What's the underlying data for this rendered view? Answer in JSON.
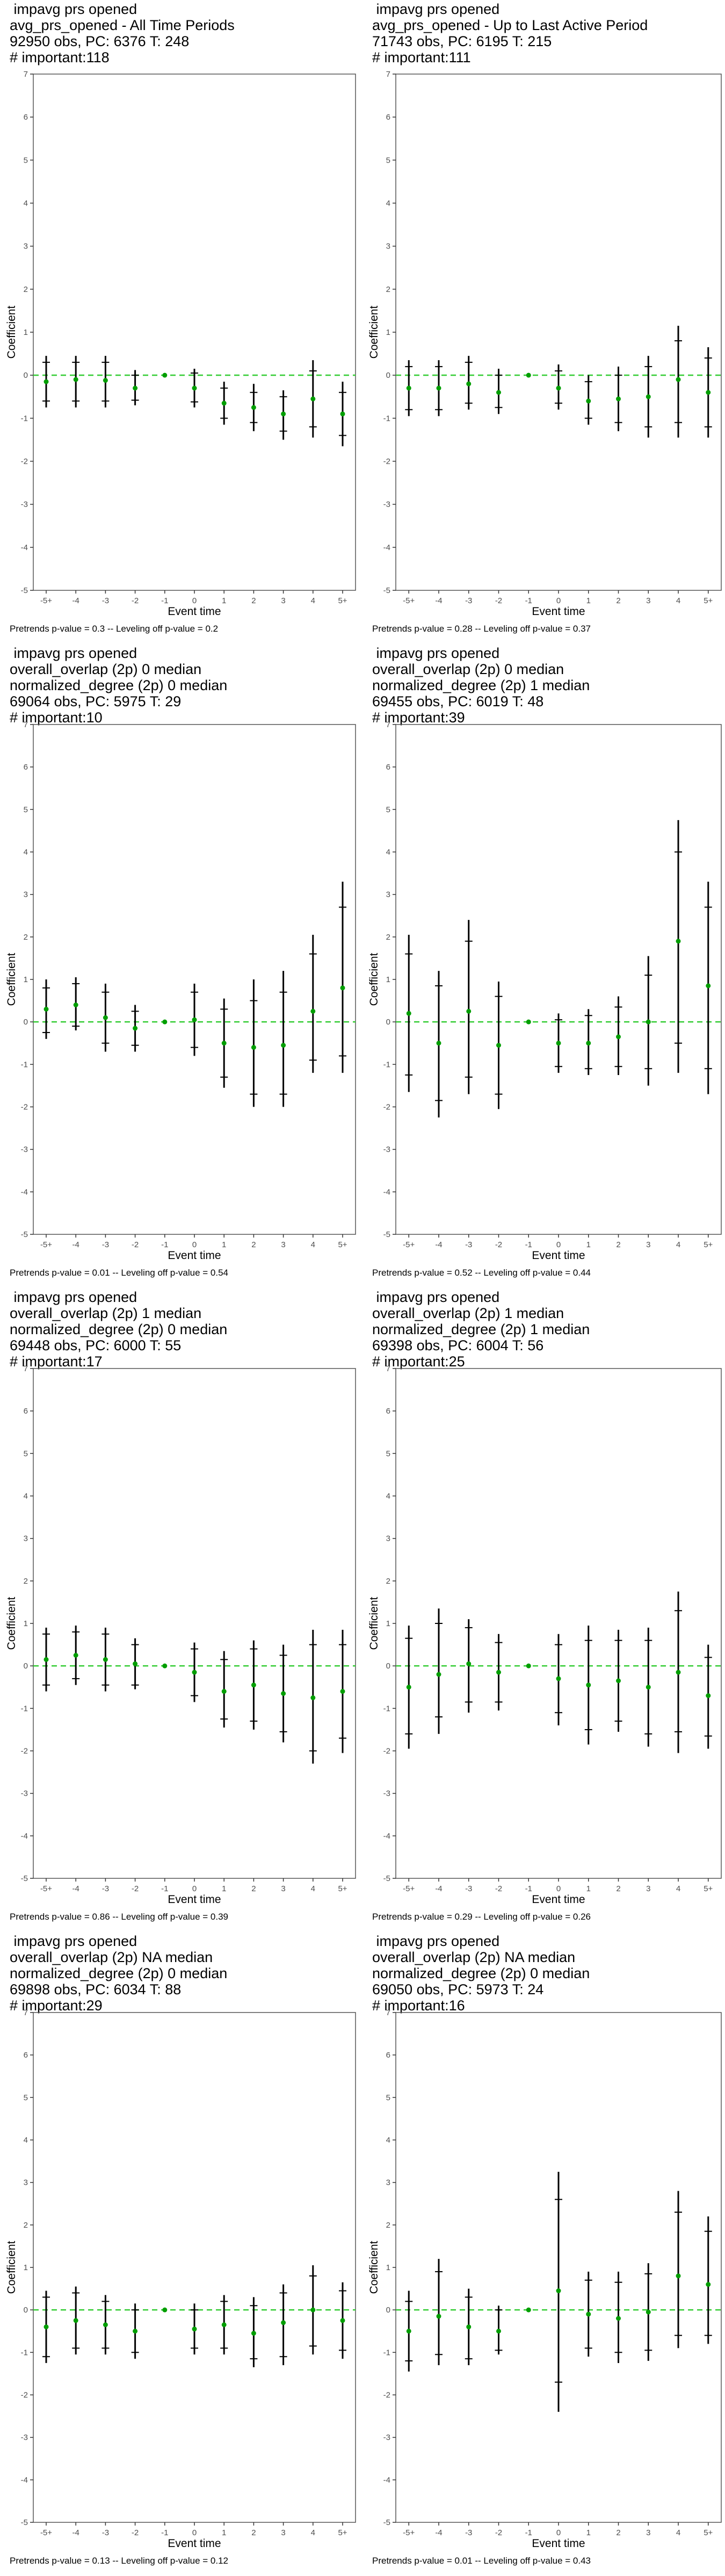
{
  "chart_data": [
    {
      "type": "errorbar",
      "title_lines": [
        " impavg prs opened",
        "avg_prs_opened - All Time Periods",
        "92950 obs, PC: 6376 T: 248",
        "# important:118"
      ],
      "caption": "Pretrends p-value = 0.3 -- Leveling off p-value = 0.2",
      "xlabel": "Event time",
      "ylabel": "Coefficient",
      "ylim": [
        -5,
        7
      ],
      "yticks": [
        -5,
        -4,
        -3,
        -2,
        -1,
        0,
        1,
        2,
        3,
        4,
        5,
        6,
        7
      ],
      "categories": [
        "-5+",
        "-4",
        "-3",
        "-2",
        "-1",
        "0",
        "1",
        "2",
        "3",
        "4",
        "5+"
      ],
      "coef": [
        -0.15,
        -0.1,
        -0.12,
        -0.3,
        0,
        -0.3,
        -0.65,
        -0.75,
        -0.9,
        -0.55,
        -0.9
      ],
      "ci_low": [
        -0.75,
        -0.75,
        -0.75,
        -0.7,
        0,
        -0.75,
        -1.15,
        -1.3,
        -1.5,
        -1.45,
        -1.65
      ],
      "ci_high": [
        0.45,
        0.45,
        0.45,
        0.12,
        0,
        0.15,
        -0.15,
        -0.2,
        -0.35,
        0.35,
        -0.15
      ],
      "ci90_low": [
        -0.6,
        -0.6,
        -0.6,
        -0.58,
        0,
        -0.62,
        -1.0,
        -1.1,
        -1.3,
        -1.2,
        -1.4
      ],
      "ci90_high": [
        0.3,
        0.3,
        0.3,
        0.0,
        0,
        0.05,
        -0.3,
        -0.4,
        -0.5,
        0.1,
        -0.4
      ]
    },
    {
      "type": "errorbar",
      "title_lines": [
        " impavg prs opened",
        "avg_prs_opened - Up to Last Active Period",
        "71743 obs, PC: 6195 T: 215",
        "# important:111"
      ],
      "caption": "Pretrends p-value = 0.28 -- Leveling off p-value = 0.37",
      "xlabel": "Event time",
      "ylabel": "Coefficient",
      "ylim": [
        -5,
        7
      ],
      "yticks": [
        -5,
        -4,
        -3,
        -2,
        -1,
        0,
        1,
        2,
        3,
        4,
        5,
        6,
        7
      ],
      "categories": [
        "-5+",
        "-4",
        "-3",
        "-2",
        "-1",
        "0",
        "1",
        "2",
        "3",
        "4",
        "5+"
      ],
      "coef": [
        -0.3,
        -0.3,
        -0.2,
        -0.4,
        0,
        -0.3,
        -0.6,
        -0.55,
        -0.5,
        -0.1,
        -0.4
      ],
      "ci_low": [
        -0.95,
        -0.95,
        -0.8,
        -0.9,
        0,
        -0.8,
        -1.15,
        -1.3,
        -1.45,
        -1.45,
        -1.45
      ],
      "ci_high": [
        0.35,
        0.35,
        0.45,
        0.15,
        0,
        0.25,
        0.0,
        0.2,
        0.45,
        1.15,
        0.65
      ],
      "ci90_low": [
        -0.8,
        -0.8,
        -0.65,
        -0.75,
        0,
        -0.65,
        -1.0,
        -1.1,
        -1.2,
        -1.1,
        -1.2
      ],
      "ci90_high": [
        0.2,
        0.2,
        0.3,
        0.0,
        0,
        0.1,
        -0.15,
        0.0,
        0.2,
        0.8,
        0.4
      ]
    },
    {
      "type": "errorbar",
      "title_lines": [
        " impavg prs opened",
        "overall_overlap (2p) 0 median",
        "normalized_degree (2p) 0 median",
        "69064 obs, PC: 5975 T: 29",
        "# important:10"
      ],
      "caption": "Pretrends p-value = 0.01 -- Leveling off p-value = 0.54",
      "xlabel": "Event time",
      "ylabel": "Coefficient",
      "ylim": [
        -5,
        7
      ],
      "yticks": [
        -5,
        -4,
        -3,
        -2,
        -1,
        0,
        1,
        2,
        3,
        4,
        5,
        6,
        7
      ],
      "categories": [
        "-5+",
        "-4",
        "-3",
        "-2",
        "-1",
        "0",
        "1",
        "2",
        "3",
        "4",
        "5+"
      ],
      "coef": [
        0.3,
        0.4,
        0.1,
        -0.15,
        0,
        0.05,
        -0.5,
        -0.6,
        -0.55,
        0.25,
        0.8
      ],
      "ci_low": [
        -0.4,
        -0.2,
        -0.7,
        -0.7,
        0,
        -0.8,
        -1.55,
        -2.0,
        -2.0,
        -1.2,
        -1.2
      ],
      "ci_high": [
        1.0,
        1.05,
        0.9,
        0.4,
        0,
        0.9,
        0.55,
        1.0,
        1.2,
        2.05,
        3.3
      ],
      "ci90_low": [
        -0.25,
        -0.1,
        -0.5,
        -0.55,
        0,
        -0.6,
        -1.3,
        -1.7,
        -1.7,
        -0.9,
        -0.8
      ],
      "ci90_high": [
        0.8,
        0.9,
        0.7,
        0.25,
        0,
        0.7,
        0.3,
        0.5,
        0.7,
        1.6,
        2.7
      ]
    },
    {
      "type": "errorbar",
      "title_lines": [
        " impavg prs opened",
        "overall_overlap (2p) 0 median",
        "normalized_degree (2p) 1 median",
        "69455 obs, PC: 6019 T: 48",
        "# important:39"
      ],
      "caption": "Pretrends p-value = 0.52 -- Leveling off p-value = 0.44",
      "xlabel": "Event time",
      "ylabel": "Coefficient",
      "ylim": [
        -5,
        7
      ],
      "yticks": [
        -5,
        -4,
        -3,
        -2,
        -1,
        0,
        1,
        2,
        3,
        4,
        5,
        6,
        7
      ],
      "categories": [
        "-5+",
        "-4",
        "-3",
        "-2",
        "-1",
        "0",
        "1",
        "2",
        "3",
        "4",
        "5+"
      ],
      "coef": [
        0.2,
        -0.5,
        0.25,
        -0.55,
        0,
        -0.5,
        -0.5,
        -0.35,
        0.0,
        1.9,
        0.85
      ],
      "ci_low": [
        -1.65,
        -2.25,
        -1.7,
        -2.05,
        0,
        -1.2,
        -1.25,
        -1.25,
        -1.5,
        -1.2,
        -1.7
      ],
      "ci_high": [
        2.05,
        1.2,
        2.4,
        0.95,
        0,
        0.2,
        0.3,
        0.6,
        1.55,
        4.75,
        3.3
      ],
      "ci90_low": [
        -1.25,
        -1.85,
        -1.3,
        -1.7,
        0,
        -1.05,
        -1.1,
        -1.05,
        -1.1,
        -0.5,
        -1.1
      ],
      "ci90_high": [
        1.6,
        0.85,
        1.9,
        0.6,
        0,
        0.05,
        0.15,
        0.35,
        1.1,
        4.0,
        2.7
      ]
    },
    {
      "type": "errorbar",
      "title_lines": [
        " impavg prs opened",
        "overall_overlap (2p) 1 median",
        "normalized_degree (2p) 0 median",
        "69448 obs, PC: 6000 T: 55",
        "# important:17"
      ],
      "caption": "Pretrends p-value = 0.86 -- Leveling off p-value = 0.39",
      "xlabel": "Event time",
      "ylabel": "Coefficient",
      "ylim": [
        -5,
        7
      ],
      "yticks": [
        -5,
        -4,
        -3,
        -2,
        -1,
        0,
        1,
        2,
        3,
        4,
        5,
        6,
        7
      ],
      "categories": [
        "-5+",
        "-4",
        "-3",
        "-2",
        "-1",
        "0",
        "1",
        "2",
        "3",
        "4",
        "5+"
      ],
      "coef": [
        0.15,
        0.25,
        0.15,
        0.05,
        0,
        -0.15,
        -0.6,
        -0.45,
        -0.65,
        -0.75,
        -0.6
      ],
      "ci_low": [
        -0.6,
        -0.45,
        -0.6,
        -0.55,
        0,
        -0.85,
        -1.45,
        -1.5,
        -1.8,
        -2.3,
        -2.05
      ],
      "ci_high": [
        0.9,
        0.95,
        0.9,
        0.65,
        0,
        0.55,
        0.35,
        0.6,
        0.5,
        0.85,
        0.85
      ],
      "ci90_low": [
        -0.45,
        -0.3,
        -0.45,
        -0.45,
        0,
        -0.7,
        -1.25,
        -1.3,
        -1.55,
        -2.0,
        -1.7
      ],
      "ci90_high": [
        0.75,
        0.8,
        0.75,
        0.5,
        0,
        0.4,
        0.15,
        0.4,
        0.25,
        0.5,
        0.5
      ]
    },
    {
      "type": "errorbar",
      "title_lines": [
        " impavg prs opened",
        "overall_overlap (2p) 1 median",
        "normalized_degree (2p) 1 median",
        "69398 obs, PC: 6004 T: 56",
        "# important:25"
      ],
      "caption": "Pretrends p-value = 0.29 -- Leveling off p-value = 0.26",
      "xlabel": "Event time",
      "ylabel": "Coefficient",
      "ylim": [
        -5,
        7
      ],
      "yticks": [
        -5,
        -4,
        -3,
        -2,
        -1,
        0,
        1,
        2,
        3,
        4,
        5,
        6,
        7
      ],
      "categories": [
        "-5+",
        "-4",
        "-3",
        "-2",
        "-1",
        "0",
        "1",
        "2",
        "3",
        "4",
        "5+"
      ],
      "coef": [
        -0.5,
        -0.2,
        0.05,
        -0.15,
        0,
        -0.3,
        -0.45,
        -0.35,
        -0.5,
        -0.15,
        -0.7
      ],
      "ci_low": [
        -1.95,
        -1.6,
        -1.1,
        -1.05,
        0,
        -1.4,
        -1.85,
        -1.55,
        -1.9,
        -2.05,
        -1.95
      ],
      "ci_high": [
        0.95,
        1.35,
        1.1,
        0.75,
        0,
        0.75,
        0.95,
        0.85,
        0.9,
        1.75,
        0.5
      ],
      "ci90_low": [
        -1.6,
        -1.2,
        -0.85,
        -0.85,
        0,
        -1.1,
        -1.5,
        -1.3,
        -1.6,
        -1.55,
        -1.65
      ],
      "ci90_high": [
        0.65,
        1.0,
        0.9,
        0.55,
        0,
        0.5,
        0.6,
        0.6,
        0.6,
        1.3,
        0.2
      ]
    },
    {
      "type": "errorbar",
      "title_lines": [
        " impavg prs opened",
        "overall_overlap (2p) NA median",
        "normalized_degree (2p) 0 median",
        "69898 obs, PC: 6034 T: 88",
        "# important:29"
      ],
      "caption": "Pretrends p-value = 0.13 -- Leveling off p-value = 0.12",
      "xlabel": "Event time",
      "ylabel": "Coefficient",
      "ylim": [
        -5,
        7
      ],
      "yticks": [
        -5,
        -4,
        -3,
        -2,
        -1,
        0,
        1,
        2,
        3,
        4,
        5,
        6,
        7
      ],
      "categories": [
        "-5+",
        "-4",
        "-3",
        "-2",
        "-1",
        "0",
        "1",
        "2",
        "3",
        "4",
        "5+"
      ],
      "coef": [
        -0.4,
        -0.25,
        -0.35,
        -0.5,
        0,
        -0.45,
        -0.35,
        -0.55,
        -0.3,
        0.0,
        -0.25
      ],
      "ci_low": [
        -1.25,
        -1.05,
        -1.05,
        -1.15,
        0,
        -1.05,
        -1.05,
        -1.35,
        -1.3,
        -1.05,
        -1.15
      ],
      "ci_high": [
        0.45,
        0.55,
        0.35,
        0.15,
        0,
        0.15,
        0.35,
        0.3,
        0.6,
        1.05,
        0.65
      ],
      "ci90_low": [
        -1.1,
        -0.9,
        -0.9,
        -1.0,
        0,
        -0.9,
        -0.9,
        -1.15,
        -1.1,
        -0.85,
        -0.95
      ],
      "ci90_high": [
        0.3,
        0.4,
        0.2,
        0.0,
        0,
        0.0,
        0.2,
        0.1,
        0.4,
        0.8,
        0.45
      ]
    },
    {
      "type": "errorbar",
      "title_lines": [
        " impavg prs opened",
        "overall_overlap (2p) NA median",
        "normalized_degree (2p) 0 median",
        "69050 obs, PC: 5973 T: 24",
        "# important:16"
      ],
      "caption": "Pretrends p-value = 0.01 -- Leveling off p-value = 0.43",
      "xlabel": "Event time",
      "ylabel": "Coefficient",
      "ylim": [
        -5,
        7
      ],
      "yticks": [
        -5,
        -4,
        -3,
        -2,
        -1,
        0,
        1,
        2,
        3,
        4,
        5,
        6,
        7
      ],
      "categories": [
        "-5+",
        "-4",
        "-3",
        "-2",
        "-1",
        "0",
        "1",
        "2",
        "3",
        "4",
        "5+"
      ],
      "coef": [
        -0.5,
        -0.15,
        -0.4,
        -0.5,
        0,
        0.45,
        -0.1,
        -0.2,
        -0.05,
        0.8,
        0.6
      ],
      "ci_low": [
        -1.45,
        -1.3,
        -1.3,
        -1.05,
        0,
        -2.4,
        -1.1,
        -1.25,
        -1.2,
        -0.9,
        -0.8
      ],
      "ci_high": [
        0.45,
        1.2,
        0.5,
        0.1,
        0,
        3.25,
        0.9,
        0.9,
        1.1,
        2.8,
        2.2
      ],
      "ci90_low": [
        -1.2,
        -1.05,
        -1.15,
        -0.95,
        0,
        -1.7,
        -0.9,
        -1.0,
        -0.95,
        -0.6,
        -0.6
      ],
      "ci90_high": [
        0.2,
        0.9,
        0.3,
        0.0,
        0,
        2.6,
        0.7,
        0.65,
        0.85,
        2.3,
        1.85
      ]
    }
  ],
  "colors": {
    "point": "#009E00",
    "zero_line": "#33cc33",
    "bar": "#000000",
    "frame": "#555555"
  }
}
